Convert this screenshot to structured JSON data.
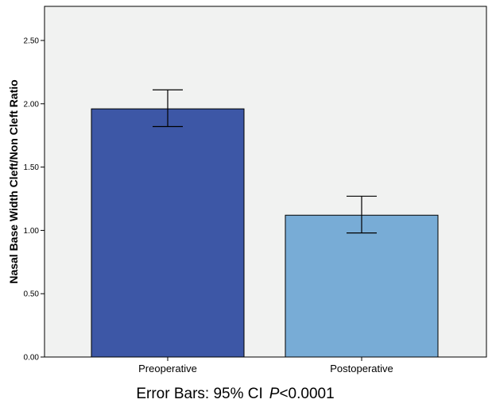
{
  "chart_data": {
    "type": "bar",
    "categories": [
      "Preoperative",
      "Postoperative"
    ],
    "values": [
      1.96,
      1.12
    ],
    "error_bars": [
      {
        "low": 1.82,
        "high": 2.11
      },
      {
        "low": 0.98,
        "high": 1.27
      }
    ],
    "ylabel": "Nasal Base Width Cleft/Non Cleft Ratio",
    "xlabel": "",
    "ylim": [
      0,
      2.75
    ],
    "yticks": [
      "0.00",
      "0.50",
      "1.00",
      "1.50",
      "2.00",
      "2.50"
    ],
    "ytick_values": [
      0,
      0.5,
      1.0,
      1.5,
      2.0,
      2.5
    ],
    "grid": false,
    "bar_colors": [
      "#3d57a6",
      "#78acd6"
    ],
    "plot_background": "#f1f2f1",
    "footnote": {
      "prefix": "Error Bars: 95% CI",
      "p_symbol": "P",
      "p_value": "<0.0001"
    }
  }
}
